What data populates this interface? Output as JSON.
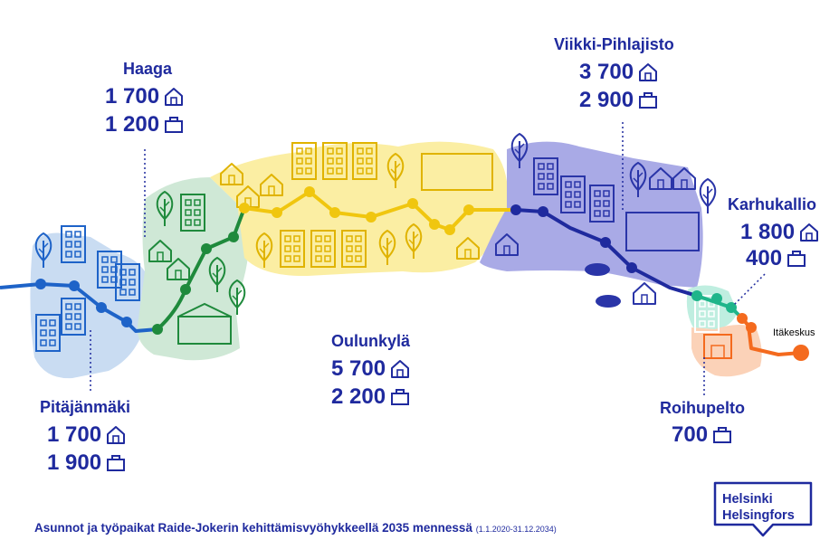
{
  "areas": {
    "haaga": {
      "name": "Haaga",
      "homes": "1 700",
      "jobs": "1 200"
    },
    "pitajanmaki": {
      "name": "Pitäjänmäki",
      "homes": "1 700",
      "jobs": "1 900"
    },
    "oulunkyla": {
      "name": "Oulunkylä",
      "homes": "5 700",
      "jobs": "2 200"
    },
    "viikki": {
      "name": "Viikki-Pihlajisto",
      "homes": "3 700",
      "jobs": "2 900"
    },
    "karhukallio": {
      "name": "Karhukallio",
      "homes": "1 800",
      "jobs": "400"
    },
    "roihupelto": {
      "name": "Roihupelto",
      "jobs": "700"
    }
  },
  "terminus": "Itäkeskus",
  "caption": {
    "text": "Asunnot ja työpaikat Raide-Jokerin kehittämisvyöhykkeellä 2035 mennessä",
    "range": "(1.1.2020-31.12.2034)"
  },
  "logo": {
    "line1": "Helsinki",
    "line2": "Helsingfors"
  },
  "icons": {
    "homes": "house-icon",
    "jobs": "briefcase-icon"
  },
  "colors": {
    "text": "#1f2a9e",
    "blue_zone": "#c9dcf2",
    "green_zone": "#cfe8d6",
    "yellow_zone": "#fbeea3",
    "purple_zone": "#a9aae6",
    "mint_zone": "#bfeee0",
    "orange_zone": "#fbd2b8",
    "line_blue": "#1e63c8",
    "line_green": "#1f8a3c",
    "line_yellow": "#f0c60f",
    "line_navy": "#1f2a9e",
    "line_teal": "#1fb58a",
    "line_orange": "#f46a1e"
  }
}
